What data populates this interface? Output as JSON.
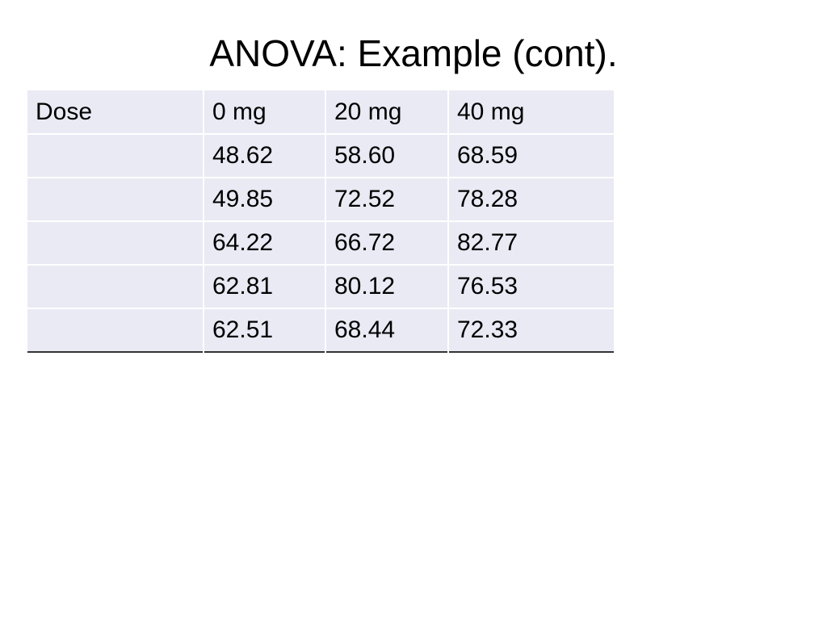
{
  "title": "ANOVA: Example (cont).",
  "table": {
    "header": [
      "Dose",
      "0 mg",
      "20 mg",
      "40 mg"
    ],
    "rows": [
      [
        "48.62",
        "58.60",
        "68.59"
      ],
      [
        "49.85",
        "72.52",
        "78.28"
      ],
      [
        "64.22",
        "66.72",
        "82.77"
      ],
      [
        "62.81",
        "80.12",
        "76.53"
      ],
      [
        "62.51",
        "68.44",
        "72.33"
      ]
    ]
  }
}
